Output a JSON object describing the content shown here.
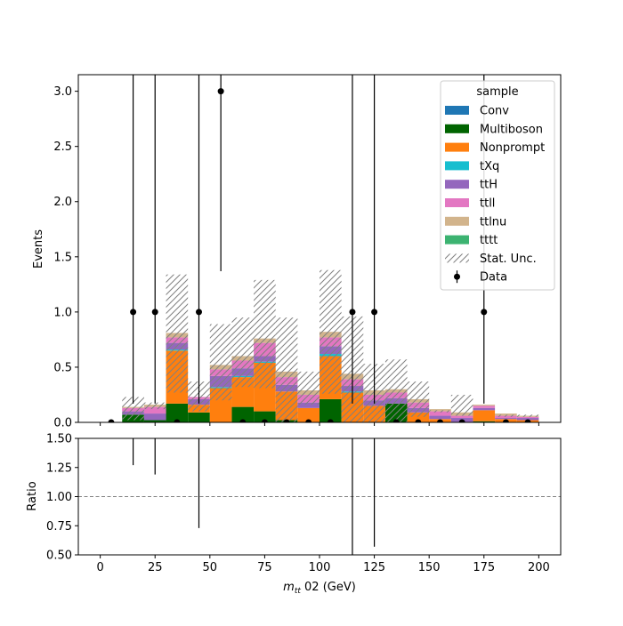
{
  "chart_data": {
    "type": "bar",
    "stacked": true,
    "xlabel": "m_tt 02 (GeV)",
    "xlabel_main": "m",
    "xlabel_sub": "tt",
    "xlabel_rest": " 02 (GeV)",
    "ylabel": "Events",
    "ratio_ylabel": "Ratio",
    "xlim": [
      -10,
      210
    ],
    "ylim": [
      0,
      3.15
    ],
    "ratio_ylim": [
      0.5,
      1.5
    ],
    "x_ticks": [
      0,
      25,
      50,
      75,
      100,
      125,
      150,
      175,
      200
    ],
    "x_tick_labels": [
      "0",
      "25",
      "50",
      "75",
      "100",
      "125",
      "150",
      "175",
      "200"
    ],
    "y_ticks": [
      0.0,
      0.5,
      1.0,
      1.5,
      2.0,
      2.5,
      3.0
    ],
    "y_tick_labels": [
      "0.0",
      "0.5",
      "1.0",
      "1.5",
      "2.0",
      "2.5",
      "3.0"
    ],
    "ratio_y_ticks": [
      0.5,
      0.75,
      1.0,
      1.25,
      1.5
    ],
    "ratio_y_tick_labels": [
      "0.50",
      "0.75",
      "1.00",
      "1.25",
      "1.50"
    ],
    "bin_edges": [
      10,
      20,
      30,
      40,
      50,
      60,
      70,
      80,
      90,
      100,
      110,
      120,
      130,
      140,
      150,
      160,
      170,
      180,
      190,
      200
    ],
    "legend": {
      "title": "sample",
      "placement": "top-right",
      "entries": [
        "Conv",
        "Multiboson",
        "Nonprompt",
        "tXq",
        "ttH",
        "ttll",
        "ttlnu",
        "tttt",
        "Stat. Unc.",
        "Data"
      ]
    },
    "series": [
      {
        "name": "Conv",
        "color": "#1f77b4",
        "values": [
          0,
          0,
          0,
          0,
          0,
          0,
          0,
          0,
          0,
          0,
          0,
          0,
          0,
          0,
          0,
          0,
          0,
          0,
          0
        ]
      },
      {
        "name": "Multiboson",
        "color": "#006400",
        "values": [
          0.07,
          0.02,
          0.17,
          0.09,
          0,
          0.14,
          0.1,
          0.02,
          0,
          0.21,
          0,
          0,
          0.17,
          0,
          0,
          0,
          0.01,
          0,
          0
        ]
      },
      {
        "name": "Nonprompt",
        "color": "#ff7f0e",
        "values": [
          0,
          0,
          0.48,
          0.07,
          0.31,
          0.27,
          0.44,
          0.26,
          0.13,
          0.39,
          0.27,
          0.15,
          0,
          0.09,
          0.03,
          0,
          0.1,
          0.03,
          0.02
        ]
      },
      {
        "name": "tXq",
        "color": "#17becf",
        "values": [
          0,
          0,
          0.01,
          0,
          0.01,
          0.01,
          0.01,
          0,
          0,
          0.02,
          0.01,
          0,
          0,
          0,
          0,
          0,
          0,
          0,
          0
        ]
      },
      {
        "name": "ttH",
        "color": "#9467bd",
        "values": [
          0.03,
          0.06,
          0.06,
          0.05,
          0.1,
          0.07,
          0.05,
          0.06,
          0.05,
          0.07,
          0.05,
          0.05,
          0.05,
          0.04,
          0.03,
          0.04,
          0.02,
          0.01,
          0.02
        ]
      },
      {
        "name": "ttll",
        "color": "#e377c2",
        "values": [
          0.03,
          0.06,
          0.05,
          0.02,
          0.06,
          0.07,
          0.12,
          0.07,
          0.07,
          0.08,
          0.06,
          0.05,
          0.05,
          0.05,
          0.04,
          0.02,
          0.02,
          0.02,
          0.01
        ]
      },
      {
        "name": "ttlnu",
        "color": "#d2b48c",
        "values": [
          0.01,
          0.02,
          0.04,
          0,
          0.04,
          0.04,
          0.04,
          0.05,
          0.04,
          0.05,
          0.05,
          0.04,
          0.03,
          0.03,
          0.02,
          0.03,
          0.01,
          0.02,
          0.01
        ]
      },
      {
        "name": "tttt",
        "color": "#3cb371",
        "values": [
          0,
          0,
          0,
          0,
          0,
          0,
          0,
          0,
          0,
          0,
          0,
          0,
          0,
          0,
          0,
          0,
          0,
          0,
          0
        ]
      }
    ],
    "stat_unc": {
      "name": "Stat. Unc.",
      "lower": [
        0.02,
        0.12,
        0.27,
        0.1,
        0.2,
        0.32,
        0.31,
        0,
        0.16,
        0.26,
        0,
        0,
        0,
        0.05,
        0.09,
        0.06,
        0.08,
        0.05,
        0.05
      ],
      "upper": [
        0.23,
        0.18,
        1.34,
        0.37,
        0.89,
        0.95,
        1.29,
        0.95,
        0.46,
        1.38,
        0.96,
        0.53,
        0.57,
        0.37,
        0.11,
        0.25,
        0.08,
        0.07,
        0.07
      ]
    },
    "data": {
      "name": "Data",
      "x": [
        5,
        15,
        25,
        35,
        45,
        55,
        65,
        75,
        85,
        95,
        105,
        115,
        125,
        135,
        145,
        155,
        165,
        175,
        185,
        195
      ],
      "y": [
        0,
        1,
        1,
        0,
        1,
        3,
        0,
        0,
        0,
        0,
        0,
        1,
        1,
        0,
        0,
        0,
        0,
        1,
        0,
        0
      ],
      "err_low": [
        0,
        0.83,
        0.83,
        0,
        0.83,
        1.63,
        0,
        0,
        0,
        0,
        0,
        0.83,
        0.83,
        0,
        0,
        0,
        0,
        0.83,
        0,
        0
      ],
      "err_high": [
        0,
        2.3,
        2.3,
        0,
        2.3,
        2.92,
        0,
        0,
        0,
        0,
        0,
        2.3,
        2.3,
        0,
        0,
        0,
        0,
        2.3,
        0,
        0
      ]
    },
    "ratio": {
      "reference_line": 1.0,
      "error_bars": [
        {
          "x": 15,
          "low": 1.27,
          "high": 1.5
        },
        {
          "x": 25,
          "low": 1.19,
          "high": 1.5
        },
        {
          "x": 45,
          "low": 0.73,
          "high": 1.5
        },
        {
          "x": 115,
          "low": 0.5,
          "high": 1.5
        },
        {
          "x": 125,
          "low": 0.57,
          "high": 1.5
        }
      ]
    }
  }
}
